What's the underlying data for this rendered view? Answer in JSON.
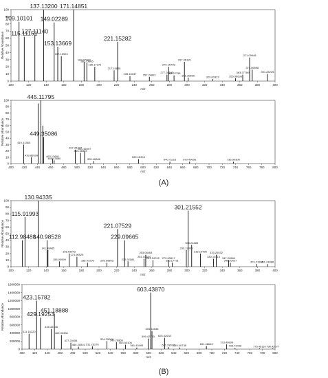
{
  "panel_labels": [
    "(A)",
    "(B)"
  ],
  "chart_data": [
    {
      "type": "bar",
      "x_label": "m/z",
      "y_label": "Relative Abundance",
      "color": "#222222",
      "xlim": [
        100,
        400
      ],
      "xticks": [
        100,
        120,
        140,
        160,
        180,
        200,
        220,
        240,
        260,
        280,
        300,
        320,
        340,
        360,
        380,
        400
      ],
      "ylim": [
        0,
        100
      ],
      "yticks": [
        0,
        10,
        20,
        30,
        40,
        50,
        60,
        70,
        80,
        90,
        100
      ],
      "x": [
        109.10101,
        115.11151,
        127.1114,
        137.132,
        149.02289,
        153.13669,
        157.15923,
        171.14851,
        183.0798,
        186.15866,
        195.17372,
        217.15835,
        221.15282,
        235.16037,
        257.24831,
        277.20185,
        279.15793,
        285.22756,
        297.06115,
        301.3069,
        329.00323,
        355.06638,
        363.27769,
        371.09948,
        374.06598,
        391.28229
      ],
      "values": [
        83,
        62,
        65,
        100,
        82,
        48,
        35,
        100,
        27,
        25,
        20,
        15,
        55,
        7,
        6,
        9,
        20,
        8,
        27,
        5,
        3,
        4,
        9,
        33,
        16,
        10
      ],
      "labels": [
        "109.10101",
        "115.11151",
        "127.11140",
        "137.13200",
        "149.02289",
        "153.13669",
        "157.15923",
        "171.14851",
        "183.07980",
        "186.15866",
        "195.17372",
        "217.15835",
        "221.15282",
        "235.16037",
        "257.24831",
        "277.20185",
        "279.15793",
        "285.22756",
        "297.06115",
        "301.30690",
        "329.00323",
        "355.06638",
        "363.27769",
        "371.09948",
        "374.06598",
        "391.28229"
      ]
    },
    {
      "type": "bar",
      "x_label": "m/z",
      "y_label": "Relative Abundance",
      "color": "#222222",
      "xlim": [
        400,
        800
      ],
      "xticks": [
        400,
        420,
        440,
        460,
        480,
        500,
        520,
        540,
        560,
        580,
        600,
        620,
        640,
        660,
        680,
        700,
        720,
        740,
        760,
        780,
        800
      ],
      "ylim": [
        0,
        100
      ],
      "yticks": [
        0,
        10,
        20,
        30,
        40,
        50,
        60,
        70,
        80,
        90,
        100
      ],
      "x": [
        419.3136,
        430.86599,
        441.1,
        445.11795,
        448.2,
        449.35086,
        463.13691,
        465.4386,
        497.45422,
        505.46525,
        511.46997,
        525.46606,
        593.15393,
        640.71116,
        670.49055,
        736.90306
      ],
      "values": [
        30,
        10,
        95,
        100,
        60,
        42,
        8,
        5,
        22,
        17,
        20,
        4,
        7,
        3,
        3,
        3
      ],
      "labels": [
        "419.31360",
        "430.86599",
        null,
        "445.11795",
        null,
        "449.35086",
        "463.13691",
        "465.43860",
        "497.45422",
        "505.46525",
        "511.46997",
        "525.46606",
        "593.15393",
        "640.71116",
        "670.49055",
        "736.90306"
      ]
    },
    {
      "type": "bar",
      "x_label": "m/z",
      "y_label": "Relative Abundance",
      "color": "#222222",
      "xlim": [
        100,
        400
      ],
      "xticks": [
        100,
        120,
        140,
        160,
        180,
        200,
        220,
        240,
        260,
        280,
        300,
        320,
        340,
        360,
        380,
        400
      ],
      "ylim": [
        0,
        100
      ],
      "yticks": [
        0,
        10,
        20,
        30,
        40,
        50,
        60,
        70,
        80,
        90,
        100
      ],
      "x": [
        112.98488,
        115.91993,
        130.94335,
        140.98528,
        141.98485,
        155.00999,
        166.09642,
        174.90525,
        186.97209,
        208.90883,
        221.07529,
        229.09665,
        232.92081,
        251.10284,
        253.06463,
        261.24702,
        279.00817,
        283.17731,
        299.19099,
        301.21552,
        305.24683,
        315.19496,
        330.10314,
        333.20532,
        347.22864,
        349.20027,
        379.21961,
        391.24686
      ],
      "values": [
        40,
        75,
        100,
        40,
        25,
        8,
        20,
        15,
        6,
        6,
        57,
        40,
        8,
        12,
        18,
        10,
        10,
        6,
        25,
        85,
        33,
        20,
        12,
        18,
        10,
        6,
        4,
        4
      ],
      "labels": [
        "112.98488",
        "115.91993",
        "130.94335",
        "140.98528",
        "141.98485",
        "155.00999",
        "166.09642",
        "174.90525",
        "186.97209",
        "208.90883",
        "221.07529",
        "229.09665",
        "232.92081",
        "251.10284",
        "253.06463",
        "261.24702",
        "279.00817",
        "283.17731",
        "299.19099",
        "301.21552",
        "305.24683",
        "315.19496",
        "330.10314",
        "333.20532",
        "347.22864",
        "349.20027",
        "379.21961",
        "391.24686"
      ]
    },
    {
      "type": "bar",
      "x_label": "m/z",
      "y_label": "Relative Abundance",
      "color": "#222222",
      "xlim": [
        400,
        800
      ],
      "xticks": [
        400,
        420,
        440,
        460,
        480,
        500,
        520,
        540,
        560,
        580,
        600,
        620,
        640,
        660,
        680,
        700,
        720,
        740,
        760,
        780,
        800
      ],
      "ylim": [
        0,
        1600000
      ],
      "yticks": [
        0,
        200000,
        400000,
        600000,
        800000,
        1000000,
        1200000,
        1400000,
        1600000
      ],
      "x": [
        411.1622,
        423.15782,
        429.19253,
        446.32336,
        451.18888,
        462.32336,
        477.20454,
        489.25915,
        511.25276,
        534.25289,
        549.26869,
        563.50106,
        581.45493,
        599.4275,
        603.4387,
        605.44538,
        625.42033,
        631.28037,
        649.40738,
        691.46643,
        723.49896,
        736.73446,
        775.4811,
        796.42077
      ],
      "values": [
        380000,
        1200000,
        780000,
        500000,
        880000,
        350000,
        160000,
        60000,
        70000,
        200000,
        170000,
        110000,
        40000,
        260000,
        1400000,
        450000,
        280000,
        50000,
        40000,
        80000,
        120000,
        30000,
        20000,
        20000
      ],
      "labels": [
        "411.16220",
        "423.15782",
        "429.19253",
        "446.32336",
        "451.18888",
        "462.32336",
        "477.20454",
        "489.25915",
        "511.25276",
        "534.25289",
        "549.26869",
        "563.50106",
        "581.45493",
        "599.42750",
        "603.43870",
        "605.44538",
        "625.42033",
        "631.28037",
        "649.40738",
        "691.46643",
        "723.49896",
        "736.73446",
        "775.48110",
        "796.42077"
      ]
    }
  ]
}
